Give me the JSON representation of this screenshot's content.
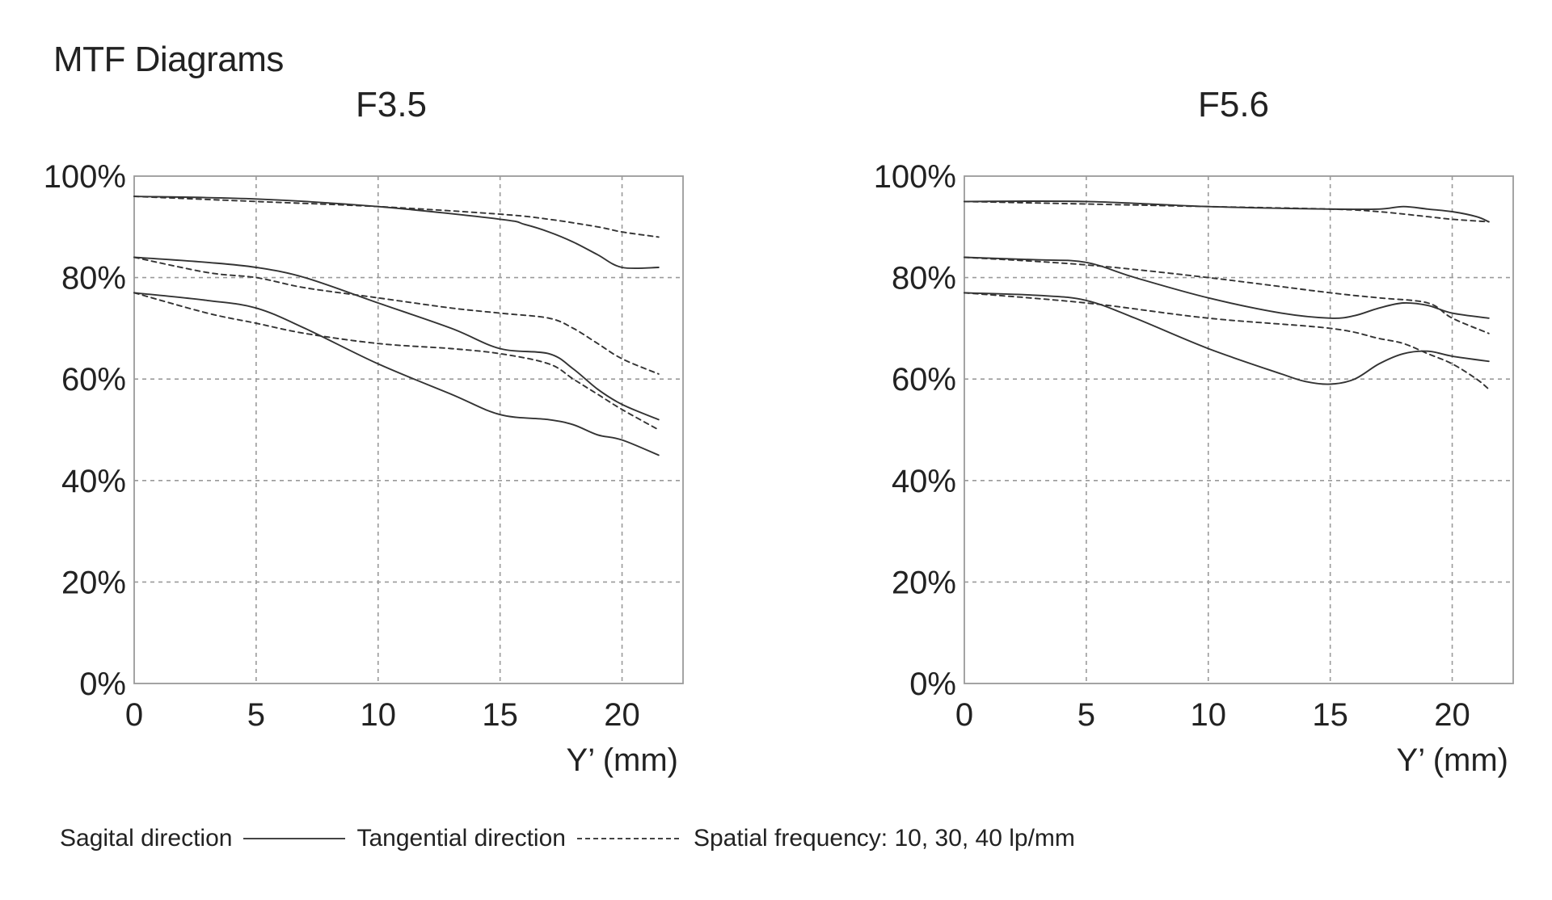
{
  "page": {
    "title": "MTF Diagrams"
  },
  "legend": {
    "sagittal_label": "Sagital direction",
    "tangential_label": "Tangential  direction",
    "frequency_label": "Spatial frequency: 10, 30, 40 lp/mm"
  },
  "colors": {
    "line": "#333333",
    "grid": "#9a9a9a",
    "frame": "#9a9a9a",
    "text": "#222222"
  },
  "chart_data": [
    {
      "type": "line",
      "title": "F3.5",
      "xlabel": "Y’ (mm)",
      "ylabel": "",
      "xlim": [
        0,
        22.5
      ],
      "ylim": [
        0,
        100
      ],
      "xticks": [
        0,
        5,
        10,
        15,
        20
      ],
      "yticks": [
        0,
        20,
        40,
        60,
        80,
        100
      ],
      "xtick_labels": [
        "0",
        "5",
        "10",
        "15",
        "20"
      ],
      "ytick_labels": [
        "0%",
        "20%",
        "40%",
        "60%",
        "80%",
        "100%"
      ],
      "grid": true,
      "series": [
        {
          "name": "Sagittal 10 lp/mm",
          "style": "solid",
          "x": [
            0,
            5,
            10,
            15,
            16,
            17,
            18,
            19,
            20,
            21.5
          ],
          "y": [
            96,
            95.5,
            94,
            91.5,
            90.5,
            89,
            87,
            84.5,
            82,
            82
          ]
        },
        {
          "name": "Tangential 10 lp/mm",
          "style": "dashed",
          "x": [
            0,
            5,
            10,
            15,
            17,
            19,
            20,
            21.5
          ],
          "y": [
            96,
            95,
            94,
            92.5,
            91.5,
            90,
            89,
            88
          ]
        },
        {
          "name": "Sagittal 30 lp/mm",
          "style": "solid",
          "x": [
            0,
            3,
            5,
            7,
            10,
            13,
            15,
            17,
            18,
            19,
            20,
            21.5
          ],
          "y": [
            84,
            83,
            82,
            80,
            75,
            70,
            66,
            65,
            62,
            58,
            55,
            52
          ]
        },
        {
          "name": "Tangential 30 lp/mm",
          "style": "dashed",
          "x": [
            0,
            3,
            5,
            7,
            10,
            13,
            15,
            17,
            18,
            19,
            20,
            21.5
          ],
          "y": [
            84,
            81,
            80,
            78,
            76,
            74,
            73,
            72,
            70,
            67,
            64,
            61
          ]
        },
        {
          "name": "Sagittal 40 lp/mm",
          "style": "solid",
          "x": [
            0,
            3,
            5,
            7,
            10,
            13,
            15,
            17,
            18,
            19,
            20,
            21.5
          ],
          "y": [
            77,
            75.5,
            74,
            70,
            63,
            57,
            53,
            52,
            51,
            49,
            48,
            45
          ]
        },
        {
          "name": "Tangential 40 lp/mm",
          "style": "dashed",
          "x": [
            0,
            3,
            5,
            7,
            10,
            13,
            15,
            17,
            18,
            19,
            20,
            21.5
          ],
          "y": [
            77,
            73,
            71,
            69,
            67,
            66,
            65,
            63,
            60,
            57,
            54,
            50
          ]
        }
      ]
    },
    {
      "type": "line",
      "title": "F5.6",
      "xlabel": "Y’ (mm)",
      "ylabel": "",
      "xlim": [
        0,
        22.5
      ],
      "ylim": [
        0,
        100
      ],
      "xticks": [
        0,
        5,
        10,
        15,
        20
      ],
      "yticks": [
        0,
        20,
        40,
        60,
        80,
        100
      ],
      "xtick_labels": [
        "0",
        "5",
        "10",
        "15",
        "20"
      ],
      "ytick_labels": [
        "0%",
        "20%",
        "40%",
        "60%",
        "80%",
        "100%"
      ],
      "grid": true,
      "series": [
        {
          "name": "Sagittal 10 lp/mm",
          "style": "solid",
          "x": [
            0,
            5,
            10,
            15,
            17,
            18,
            19,
            20,
            21,
            21.5
          ],
          "y": [
            95,
            95,
            94,
            93.5,
            93.5,
            94,
            93.5,
            93,
            92,
            91
          ]
        },
        {
          "name": "Tangential 10 lp/mm",
          "style": "dashed",
          "x": [
            0,
            5,
            10,
            15,
            17,
            19,
            20,
            21.5
          ],
          "y": [
            95,
            94.5,
            94,
            93.5,
            93,
            92,
            91.5,
            91
          ]
        },
        {
          "name": "Sagittal 30 lp/mm",
          "style": "solid",
          "x": [
            0,
            3,
            5,
            7,
            10,
            13,
            15,
            16,
            17,
            18,
            19,
            20,
            21.5
          ],
          "y": [
            84,
            83.5,
            83,
            80,
            76,
            73,
            72,
            72.5,
            74,
            75,
            74.5,
            73,
            72
          ]
        },
        {
          "name": "Tangential 30 lp/mm",
          "style": "dashed",
          "x": [
            0,
            5,
            10,
            15,
            17,
            19,
            20,
            21.5
          ],
          "y": [
            84,
            82.5,
            80,
            77,
            76,
            75,
            72,
            69
          ]
        },
        {
          "name": "Sagittal 40 lp/mm",
          "style": "solid",
          "x": [
            0,
            3,
            5,
            7,
            10,
            13,
            14,
            15,
            16,
            17,
            18,
            19,
            20,
            21.5
          ],
          "y": [
            77,
            76.5,
            75.5,
            72,
            66,
            61,
            59.5,
            59,
            60,
            63,
            65,
            65.5,
            64.5,
            63.5
          ]
        },
        {
          "name": "Tangential 40 lp/mm",
          "style": "dashed",
          "x": [
            0,
            5,
            10,
            15,
            17,
            18,
            19,
            20,
            21,
            21.5
          ],
          "y": [
            77,
            75,
            72,
            70,
            68,
            67,
            65,
            63,
            60,
            58
          ]
        }
      ]
    }
  ]
}
